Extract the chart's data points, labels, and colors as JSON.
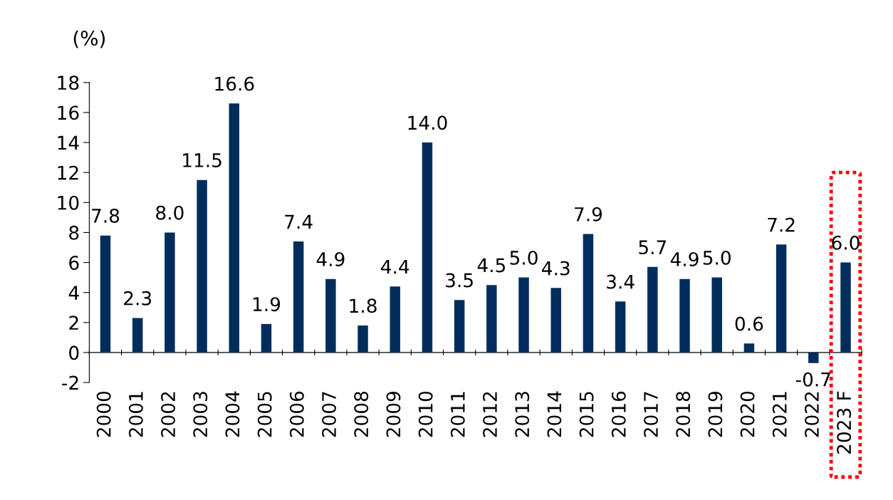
{
  "chart_data": {
    "type": "bar",
    "ylabel": "(%)",
    "categories": [
      "2000",
      "2001",
      "2002",
      "2003",
      "2004",
      "2005",
      "2006",
      "2007",
      "2008",
      "2009",
      "2010",
      "2011",
      "2012",
      "2013",
      "2014",
      "2015",
      "2016",
      "2017",
      "2018",
      "2019",
      "2020",
      "2021",
      "2022",
      "2023 F"
    ],
    "values": [
      7.8,
      2.3,
      8.0,
      11.5,
      16.6,
      1.9,
      7.4,
      4.9,
      1.8,
      4.4,
      14.0,
      3.5,
      4.5,
      5.0,
      4.3,
      7.9,
      3.4,
      5.7,
      4.9,
      5.0,
      0.6,
      7.2,
      -0.7,
      6.0
    ],
    "value_labels": [
      "7.8",
      "2.3",
      "8.0",
      "11.5",
      "16.6",
      "1.9",
      "7.4",
      "4.9",
      "1.8",
      "4.4",
      "14.0",
      "3.5",
      "4.5",
      "5.0",
      "4.3",
      "7.9",
      "3.4",
      "5.7",
      "4.9",
      "5.0",
      "0.6",
      "7.2",
      "-0.7",
      "6.0"
    ],
    "color": "#002d5c",
    "ylim": [
      -2,
      18
    ],
    "yticks": [
      -2,
      0,
      2,
      4,
      6,
      8,
      10,
      12,
      14,
      16,
      18
    ],
    "grid": false,
    "legend": false
  }
}
